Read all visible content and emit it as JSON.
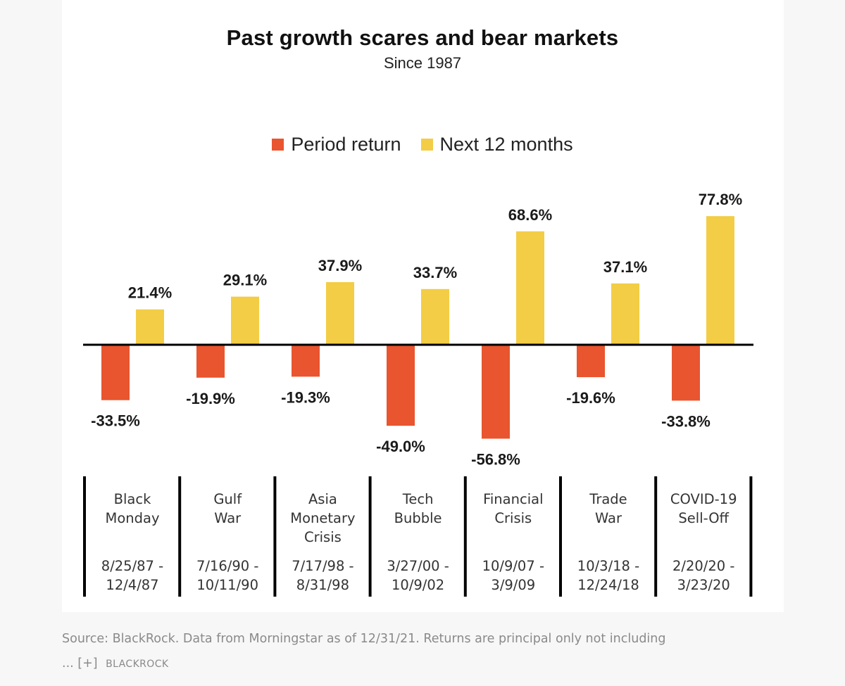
{
  "chart_data": {
    "type": "bar",
    "title": "Past growth scares and bear markets",
    "subtitle": "Since 1987",
    "categories": [
      "Black Monday",
      "Gulf War",
      "Asia Monetary Crisis",
      "Tech Bubble",
      "Financial Crisis",
      "Trade War",
      "COVID-19 Sell-Off"
    ],
    "category_lines": [
      [
        "Black",
        "Monday"
      ],
      [
        "Gulf",
        "War"
      ],
      [
        "Asia",
        "Monetary",
        "Crisis"
      ],
      [
        "Tech",
        "Bubble"
      ],
      [
        "Financial",
        "Crisis"
      ],
      [
        "Trade",
        "War"
      ],
      [
        "COVID-19",
        "Sell-Off"
      ]
    ],
    "date_ranges": [
      [
        "8/25/87 -",
        "12/4/87"
      ],
      [
        "7/16/90 -",
        "10/11/90"
      ],
      [
        "7/17/98 -",
        "8/31/98"
      ],
      [
        "3/27/00 -",
        "10/9/02"
      ],
      [
        "10/9/07 -",
        "3/9/09"
      ],
      [
        "10/3/18 -",
        "12/24/18"
      ],
      [
        "2/20/20 -",
        "3/23/20"
      ]
    ],
    "series": [
      {
        "name": "Period return",
        "color": "#e8552f",
        "values": [
          -33.5,
          -19.9,
          -19.3,
          -49.0,
          -56.8,
          -19.6,
          -33.8
        ],
        "labels": [
          "-33.5%",
          "-19.9%",
          "-19.3%",
          "-49.0%",
          "-56.8%",
          "-19.6%",
          "-33.8%"
        ]
      },
      {
        "name": "Next 12 months",
        "color": "#f3cd45",
        "values": [
          21.4,
          29.1,
          37.9,
          33.7,
          68.6,
          37.1,
          77.8
        ],
        "labels": [
          "21.4%",
          "29.1%",
          "37.9%",
          "33.7%",
          "68.6%",
          "37.1%",
          "77.8%"
        ]
      }
    ],
    "ylim": [
      -60,
      80
    ],
    "xlabel": "",
    "ylabel": "",
    "legend_position": "top-center",
    "grid": false
  },
  "footer": {
    "source_text": "Source: BlackRock. Data from Morningstar as of 12/31/21. Returns are principal only not including",
    "more_text": "... [+]",
    "brand": "BLACKROCK"
  }
}
